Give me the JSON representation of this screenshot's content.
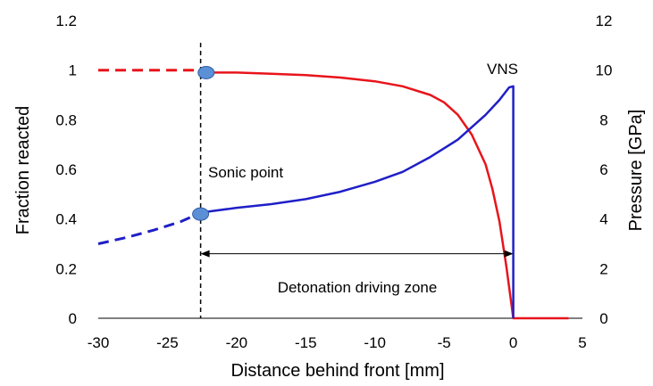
{
  "chart_data": {
    "type": "line",
    "xlabel": "Distance behind front [mm]",
    "ylabel": "Fraction reacted",
    "y2label": "Pressure [GPa]",
    "xlim": [
      -30,
      5
    ],
    "ylim": [
      0,
      1.2
    ],
    "y2lim": [
      0,
      12
    ],
    "x_ticks": [
      "-30",
      "-25",
      "-20",
      "-15",
      "-10",
      "-5",
      "0",
      "5"
    ],
    "y_ticks": [
      "0",
      "0.2",
      "0.4",
      "0.6",
      "0.8",
      "1",
      "1.2"
    ],
    "y2_ticks": [
      "0",
      "2",
      "4",
      "6",
      "8",
      "10",
      "12"
    ],
    "grid": false,
    "legend": "none",
    "series": [
      {
        "color": "#e8141b",
        "axis": "left",
        "dashed": {
          "x": [
            -30,
            -22.2
          ],
          "y": [
            1.0,
            1.0
          ]
        },
        "solid": {
          "x": [
            -22.2,
            -20,
            -17.5,
            -15,
            -12.5,
            -10,
            -8,
            -6,
            -5,
            -4,
            -3,
            -2,
            -1.5,
            -1,
            -0.5,
            0,
            4
          ],
          "y": [
            0.99,
            0.99,
            0.985,
            0.98,
            0.97,
            0.955,
            0.935,
            0.9,
            0.87,
            0.82,
            0.74,
            0.62,
            0.52,
            0.39,
            0.21,
            0.0,
            0.0
          ]
        }
      },
      {
        "color": "#1f1fc8",
        "axis": "right",
        "dashed": {
          "x": [
            -30,
            -28,
            -26,
            -24,
            -22.8
          ],
          "y": [
            3.0,
            3.25,
            3.55,
            3.9,
            4.2
          ]
        },
        "solid": {
          "x": [
            -22.8,
            -22,
            -20,
            -17.5,
            -15,
            -12.5,
            -10,
            -8,
            -6,
            -4,
            -3,
            -2,
            -1,
            -0.3,
            0,
            0
          ],
          "y": [
            4.2,
            4.3,
            4.45,
            4.6,
            4.8,
            5.1,
            5.5,
            5.9,
            6.5,
            7.2,
            7.7,
            8.2,
            8.8,
            9.3,
            9.35,
            0.0
          ]
        }
      }
    ],
    "markers": [
      {
        "x": -22.2,
        "y": 0.99,
        "axis": "left"
      },
      {
        "x": -22.6,
        "y": 4.2,
        "axis": "right"
      }
    ],
    "vline": {
      "x": -22.6,
      "style": "dashed"
    },
    "annotations": {
      "sonic_point": "Sonic point",
      "vns": "VNS",
      "driving_zone": "Detonation driving zone"
    },
    "arrow": {
      "from_x": -22.6,
      "to_x": 0,
      "y": 0.26
    }
  }
}
